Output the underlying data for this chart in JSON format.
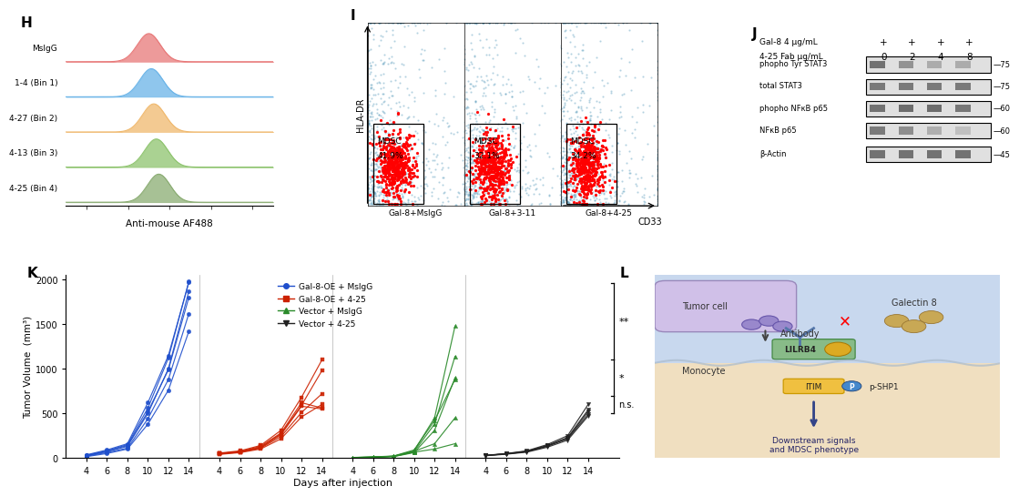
{
  "panel_H": {
    "labels": [
      "MsIgG",
      "1-4 (Bin 1)",
      "4-27 (Bin 2)",
      "4-13 (Bin 3)",
      "4-25 (Bin 4)"
    ],
    "colors": [
      "#e87878",
      "#6ab4e8",
      "#f0b96e",
      "#8ec46e",
      "#8aac72"
    ],
    "xlabel": "Anti-mouse AF488",
    "panel_label": "H"
  },
  "panel_I": {
    "conditions": [
      "Gal-8+MsIgG",
      "Gal-8+3-11",
      "Gal-8+4-25"
    ],
    "percentages": [
      "41.9%",
      "32.1%",
      "34.2%"
    ],
    "xlabel": "CD33",
    "ylabel": "HLA-DR",
    "panel_label": "I"
  },
  "panel_J": {
    "panel_label": "J",
    "bands": [
      {
        "label": "phopho Tyr STAT3",
        "kda": "75"
      },
      {
        "label": "total STAT3",
        "kda": "75"
      },
      {
        "label": "phopho NFκB p65",
        "kda": "60"
      },
      {
        "label": "NFκB p65",
        "kda": "60"
      },
      {
        "label": "β-Actin",
        "kda": "45"
      }
    ]
  },
  "panel_K": {
    "panel_label": "K",
    "ylabel": "Tumor Volume  (mm³)",
    "xlabel": "Days after injection",
    "ylim": [
      0,
      2000
    ],
    "yticks": [
      0,
      500,
      1000,
      1500,
      2000
    ],
    "days": [
      4,
      6,
      8,
      10,
      12,
      14
    ],
    "groups": [
      {
        "name": "Gal-8-OE + MsIgG",
        "color": "#1f4fcc",
        "marker": "o",
        "mice": [
          [
            30,
            80,
            150,
            560,
            1120,
            1980
          ],
          [
            25,
            70,
            130,
            500,
            1000,
            1870
          ],
          [
            20,
            60,
            110,
            440,
            880,
            1620
          ],
          [
            15,
            50,
            100,
            380,
            760,
            1420
          ],
          [
            35,
            90,
            160,
            620,
            1150,
            1970
          ],
          [
            28,
            75,
            140,
            520,
            990,
            1800
          ]
        ]
      },
      {
        "name": "Gal-8-OE + 4-25",
        "color": "#cc2200",
        "marker": "s",
        "mice": [
          [
            55,
            80,
            140,
            310,
            680,
            1100
          ],
          [
            50,
            70,
            120,
            270,
            590,
            980
          ],
          [
            45,
            65,
            110,
            240,
            510,
            720
          ],
          [
            40,
            60,
            100,
            215,
            460,
            600
          ],
          [
            48,
            72,
            130,
            280,
            620,
            560
          ],
          [
            52,
            68,
            115,
            260,
            580,
            550
          ]
        ]
      },
      {
        "name": "Vector + MsIgG",
        "color": "#2a8a2a",
        "marker": "^",
        "mice": [
          [
            5,
            10,
            20,
            80,
            450,
            1480
          ],
          [
            4,
            8,
            18,
            70,
            380,
            1140
          ],
          [
            3,
            7,
            15,
            60,
            310,
            900
          ],
          [
            6,
            12,
            22,
            90,
            420,
            880
          ],
          [
            5,
            9,
            19,
            75,
            160,
            450
          ],
          [
            4,
            11,
            17,
            65,
            100,
            160
          ]
        ]
      },
      {
        "name": "Vector + 4-25",
        "color": "#222222",
        "marker": "v",
        "mice": [
          [
            30,
            50,
            80,
            150,
            250,
            600
          ],
          [
            28,
            45,
            70,
            130,
            220,
            520
          ],
          [
            25,
            42,
            65,
            120,
            200,
            470
          ],
          [
            27,
            48,
            75,
            140,
            230,
            540
          ],
          [
            29,
            46,
            72,
            135,
            215,
            490
          ]
        ]
      }
    ]
  },
  "panel_L": {
    "panel_label": "L",
    "labels": {
      "tumor_cell": "Tumor cell",
      "antibody": "Antibody",
      "galectin8": "Galectin 8",
      "lilrb4": "LILRB4",
      "monocyte": "Monocyte",
      "itim": "ITIM",
      "pshp1": "p-SHP1",
      "downstream": "Downstream signals\nand MDSC phenotype"
    }
  },
  "background_color": "#ffffff"
}
